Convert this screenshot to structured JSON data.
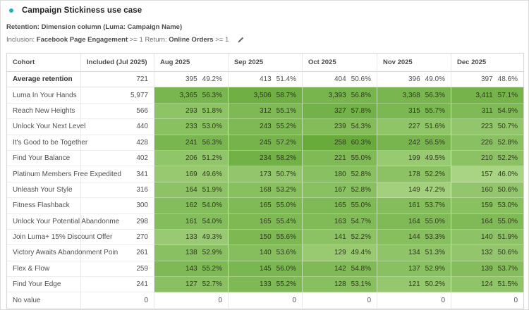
{
  "header": {
    "title": "Campaign Stickiness use case",
    "retention_label": "Retention:",
    "retention_value": "Dimension column (Luma: Campaign Name)",
    "inclusion_parts": [
      {
        "text": "Inclusion: ",
        "bold": false
      },
      {
        "text": "Facebook Page Engagement",
        "bold": true
      },
      {
        "text": " >= 1 ",
        "bold": false
      },
      {
        "text": "Return: ",
        "bold": false
      },
      {
        "text": "Online Orders",
        "bold": true
      },
      {
        "text": " >= 1",
        "bold": false
      }
    ],
    "edit_icon": "pencil-icon"
  },
  "colors": {
    "accent_teal": "#1cb4b4",
    "heat_light": "#aad586",
    "heat_dark": "#67aa3a",
    "heat_min_pct": 45.5,
    "heat_max_pct": 60.5
  },
  "table": {
    "columns": [
      "Cohort",
      "Included (Jul 2025)",
      "Aug 2025",
      "Sep 2025",
      "Oct 2025",
      "Nov 2025",
      "Dec 2025"
    ],
    "average_row": {
      "label": "Average retention",
      "included": "721",
      "months": [
        [
          "395",
          49.2
        ],
        [
          "413",
          51.4
        ],
        [
          "404",
          50.6
        ],
        [
          "396",
          49.0
        ],
        [
          "397",
          48.6
        ]
      ]
    },
    "rows": [
      {
        "label": "Luma In Your Hands",
        "included": "5,977",
        "months": [
          [
            "3,365",
            56.3
          ],
          [
            "3,506",
            58.7
          ],
          [
            "3,393",
            56.8
          ],
          [
            "3,368",
            56.3
          ],
          [
            "3,411",
            57.1
          ]
        ]
      },
      {
        "label": "Reach New Heights",
        "included": "566",
        "months": [
          [
            "293",
            51.8
          ],
          [
            "312",
            55.1
          ],
          [
            "327",
            57.8
          ],
          [
            "315",
            55.7
          ],
          [
            "311",
            54.9
          ]
        ]
      },
      {
        "label": "Unlock Your Next Level",
        "included": "440",
        "months": [
          [
            "233",
            53.0
          ],
          [
            "243",
            55.2
          ],
          [
            "239",
            54.3
          ],
          [
            "227",
            51.6
          ],
          [
            "223",
            50.7
          ]
        ]
      },
      {
        "label": "It's Good to be Together",
        "included": "428",
        "months": [
          [
            "241",
            56.3
          ],
          [
            "245",
            57.2
          ],
          [
            "258",
            60.3
          ],
          [
            "242",
            56.5
          ],
          [
            "226",
            52.8
          ]
        ]
      },
      {
        "label": "Find Your Balance",
        "included": "402",
        "months": [
          [
            "206",
            51.2
          ],
          [
            "234",
            58.2
          ],
          [
            "221",
            55.0
          ],
          [
            "199",
            49.5
          ],
          [
            "210",
            52.2
          ]
        ]
      },
      {
        "label": "Platinum Members Free Expedited",
        "included": "341",
        "months": [
          [
            "169",
            49.6
          ],
          [
            "173",
            50.7
          ],
          [
            "180",
            52.8
          ],
          [
            "178",
            52.2
          ],
          [
            "157",
            46.0
          ]
        ]
      },
      {
        "label": "Unleash Your Style",
        "included": "316",
        "months": [
          [
            "164",
            51.9
          ],
          [
            "168",
            53.2
          ],
          [
            "167",
            52.8
          ],
          [
            "149",
            47.2
          ],
          [
            "160",
            50.6
          ]
        ]
      },
      {
        "label": "Fitness Flashback",
        "included": "300",
        "months": [
          [
            "162",
            54.0
          ],
          [
            "165",
            55.0
          ],
          [
            "165",
            55.0
          ],
          [
            "161",
            53.7
          ],
          [
            "159",
            53.0
          ]
        ]
      },
      {
        "label": "Unlock Your Potential Abandonme",
        "included": "298",
        "months": [
          [
            "161",
            54.0
          ],
          [
            "165",
            55.4
          ],
          [
            "163",
            54.7
          ],
          [
            "164",
            55.0
          ],
          [
            "164",
            55.0
          ]
        ]
      },
      {
        "label": "Join Luma+ 15% Discount Offer",
        "included": "270",
        "months": [
          [
            "133",
            49.3
          ],
          [
            "150",
            55.6
          ],
          [
            "141",
            52.2
          ],
          [
            "144",
            53.3
          ],
          [
            "140",
            51.9
          ]
        ]
      },
      {
        "label": "Victory Awaits Abandonment Poin",
        "included": "261",
        "months": [
          [
            "138",
            52.9
          ],
          [
            "140",
            53.6
          ],
          [
            "129",
            49.4
          ],
          [
            "134",
            51.3
          ],
          [
            "132",
            50.6
          ]
        ]
      },
      {
        "label": "Flex & Flow",
        "included": "259",
        "months": [
          [
            "143",
            55.2
          ],
          [
            "145",
            56.0
          ],
          [
            "142",
            54.8
          ],
          [
            "137",
            52.9
          ],
          [
            "139",
            53.7
          ]
        ]
      },
      {
        "label": "Find Your Edge",
        "included": "241",
        "months": [
          [
            "127",
            52.7
          ],
          [
            "133",
            55.2
          ],
          [
            "128",
            53.1
          ],
          [
            "121",
            50.2
          ],
          [
            "124",
            51.5
          ]
        ]
      },
      {
        "label": "No value",
        "included": "0",
        "months": [
          [
            "0",
            null
          ],
          [
            "0",
            null
          ],
          [
            "0",
            null
          ],
          [
            "0",
            null
          ],
          [
            "0",
            null
          ]
        ]
      }
    ]
  }
}
